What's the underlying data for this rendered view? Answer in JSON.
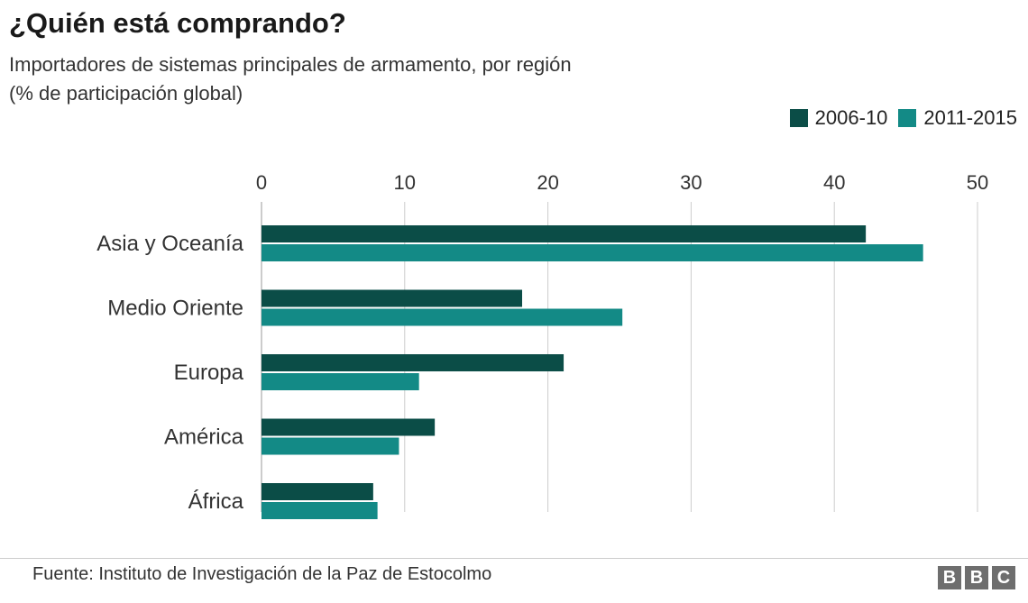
{
  "header": {
    "title": "¿Quién está comprando?",
    "subtitle_line1": "Importadores de sistemas principales de armamento, por región",
    "subtitle_line2": "(% de participación global)"
  },
  "footer": {
    "source": "Fuente: Instituto de Investigación de la Paz de Estocolmo",
    "logo_letters": [
      "B",
      "B",
      "C"
    ]
  },
  "colors": {
    "series_2006": "#0b4d47",
    "series_2011": "#138a86",
    "gridline": "#cccccc"
  },
  "chart_data": {
    "type": "bar",
    "orientation": "horizontal",
    "title": "¿Quién está comprando?",
    "subtitle": "Importadores de sistemas principales de armamento, por región (% de participación global)",
    "categories": [
      "Asia y Oceanía",
      "Medio Oriente",
      "Europa",
      "América",
      "África"
    ],
    "series": [
      {
        "name": "2006-10",
        "values": [
          42.2,
          18.2,
          21.1,
          12.1,
          7.8
        ]
      },
      {
        "name": "2011-2015",
        "values": [
          46.2,
          25.2,
          11.0,
          9.6,
          8.1
        ]
      }
    ],
    "xlim": [
      0,
      50
    ],
    "xticks": [
      0,
      10,
      20,
      30,
      40,
      50
    ],
    "xtick_labels": [
      "0",
      "10",
      "20",
      "30",
      "40",
      "50"
    ],
    "grid": true,
    "legend_position": "top-right",
    "xlabel": "",
    "ylabel": ""
  }
}
